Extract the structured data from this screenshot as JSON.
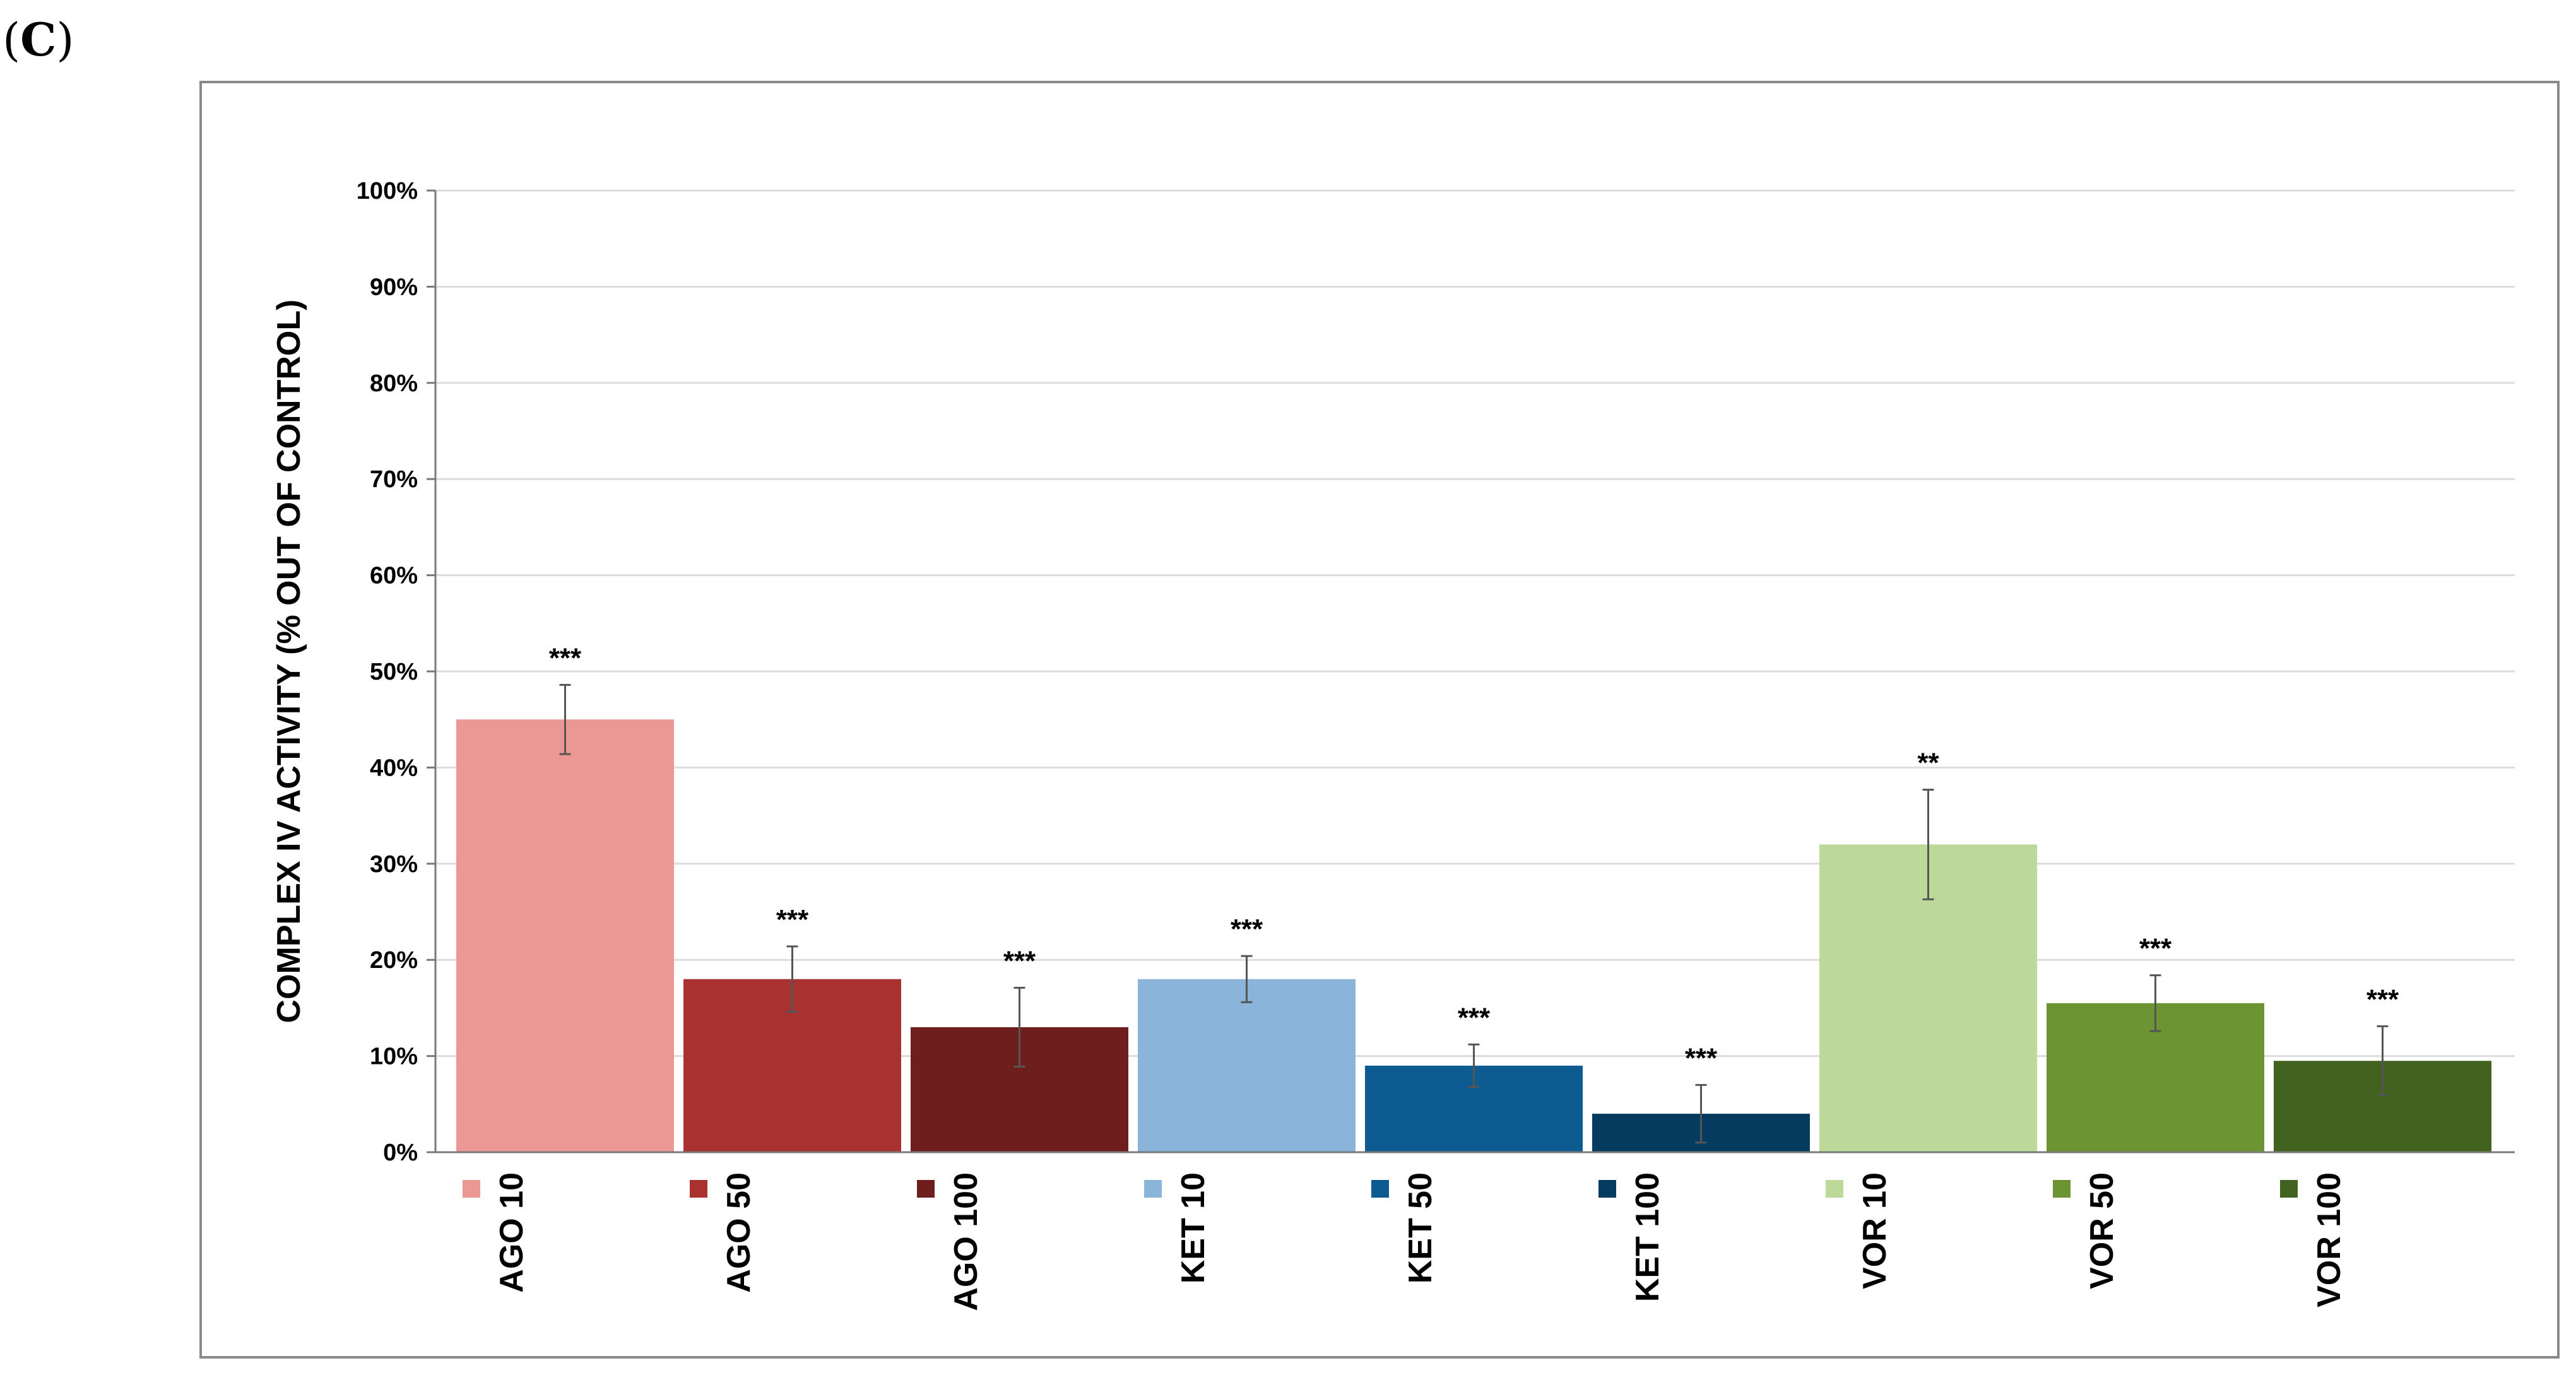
{
  "panel_label": {
    "open": "(",
    "letter": "C",
    "close": ")"
  },
  "chart_data": {
    "type": "bar",
    "ylabel": "COMPLEX IV ACTIVITY (% OUT OF CONTROL)",
    "xlabel": "",
    "ylim": [
      0,
      100
    ],
    "y_ticks": [
      "0%",
      "10%",
      "20%",
      "30%",
      "40%",
      "50%",
      "60%",
      "70%",
      "80%",
      "90%",
      "100%"
    ],
    "grid": true,
    "categories": [
      "AGO 10",
      "AGO 50",
      "AGO 100",
      "KET 10",
      "KET 50",
      "KET 100",
      "VOR 10",
      "VOR 50",
      "VOR 100"
    ],
    "values": [
      45,
      18,
      13,
      18,
      9,
      4,
      32,
      15.5,
      9.5
    ],
    "error": [
      3.6,
      3.4,
      4.1,
      2.4,
      2.2,
      3.0,
      5.7,
      2.9,
      3.6
    ],
    "significance": [
      "***",
      "***",
      "***",
      "***",
      "***",
      "***",
      "**",
      "***",
      "***"
    ],
    "colors": [
      "#EB9895",
      "#A93231",
      "#6F1E1E",
      "#8BB4DA",
      "#0E5B91",
      "#043B5E",
      "#BDD999",
      "#6C9432",
      "#42621F"
    ]
  }
}
